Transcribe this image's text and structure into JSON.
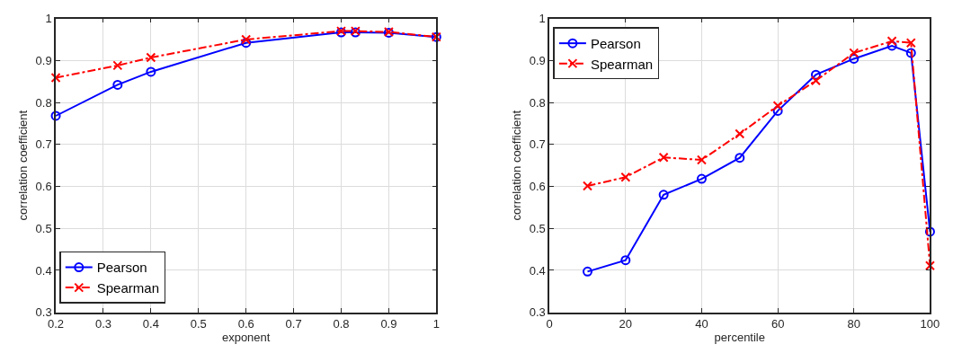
{
  "chart_data": [
    {
      "type": "line",
      "xlabel": "exponent",
      "ylabel": "correlation coefficient",
      "x": [
        0.2,
        0.33,
        0.4,
        0.6,
        0.8,
        0.83,
        0.9,
        1.0
      ],
      "series": [
        {
          "name": "Pearson",
          "color": "#0000ff",
          "marker": "circle",
          "line_style": "solid",
          "values": [
            0.768,
            0.842,
            0.873,
            0.942,
            0.967,
            0.967,
            0.966,
            0.956
          ]
        },
        {
          "name": "Spearman",
          "color": "#ff0000",
          "marker": "cross",
          "line_style": "dashed",
          "values": [
            0.859,
            0.888,
            0.907,
            0.95,
            0.97,
            0.97,
            0.968,
            0.956
          ]
        }
      ],
      "xlim": [
        0.2,
        1
      ],
      "xticks": [
        0.2,
        0.3,
        0.4,
        0.5,
        0.6,
        0.7,
        0.8,
        0.9,
        1
      ],
      "ylim": [
        0.3,
        1
      ],
      "yticks": [
        0.3,
        0.4,
        0.5,
        0.6,
        0.7,
        0.8,
        0.9,
        1
      ],
      "grid": true,
      "legend": "bottom left"
    },
    {
      "type": "line",
      "xlabel": "percentile",
      "ylabel": "correlation coefficient",
      "x": [
        10,
        20,
        30,
        40,
        50,
        60,
        70,
        80,
        90,
        95,
        100
      ],
      "series": [
        {
          "name": "Pearson",
          "color": "#0000ff",
          "marker": "circle",
          "line_style": "solid",
          "values": [
            0.397,
            0.424,
            0.58,
            0.618,
            0.668,
            0.78,
            0.866,
            0.904,
            0.935,
            0.918,
            0.492
          ]
        },
        {
          "name": "Spearman",
          "color": "#ff0000",
          "marker": "cross",
          "line_style": "dashed",
          "values": [
            0.601,
            0.622,
            0.669,
            0.663,
            0.725,
            0.792,
            0.852,
            0.918,
            0.946,
            0.942,
            0.411
          ]
        }
      ],
      "xlim": [
        0,
        100
      ],
      "xticks": [
        0,
        20,
        40,
        60,
        80,
        100
      ],
      "ylim": [
        0.3,
        1
      ],
      "yticks": [
        0.3,
        0.4,
        0.5,
        0.6,
        0.7,
        0.8,
        0.9,
        1
      ],
      "grid": true,
      "legend": "top left"
    }
  ]
}
